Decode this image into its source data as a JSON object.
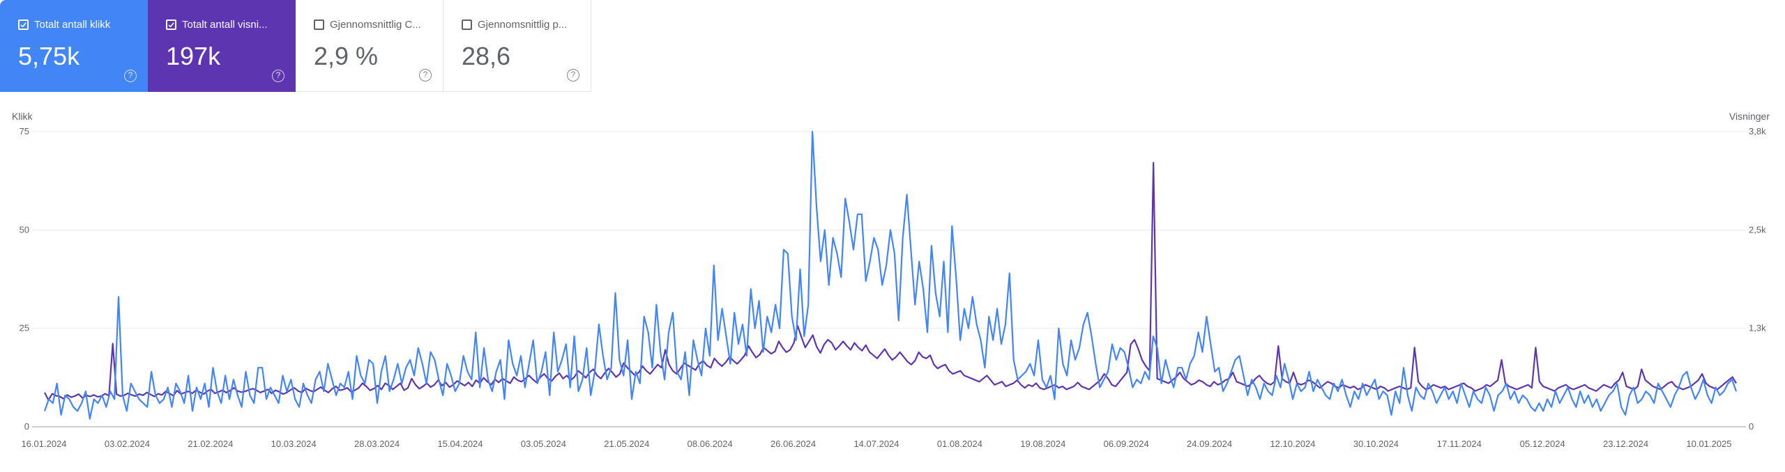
{
  "cards": [
    {
      "label": "Totalt antall klikk",
      "value": "5,75k",
      "checked": true,
      "color": "#4285f4"
    },
    {
      "label": "Totalt antall visni...",
      "value": "197k",
      "checked": true,
      "color": "#5e35b1"
    },
    {
      "label": "Gjennomsnittlig C...",
      "value": "2,9 %",
      "checked": false,
      "color": "#ffffff"
    },
    {
      "label": "Gjennomsnittlig p...",
      "value": "28,6",
      "checked": false,
      "color": "#ffffff"
    }
  ],
  "help_glyph": "?",
  "chart_data": {
    "type": "line",
    "left_axis_title": "Klikk",
    "right_axis_title": "Visninger",
    "left_ticks": [
      "0",
      "25",
      "50",
      "75"
    ],
    "right_ticks": [
      "0",
      "1,3k",
      "2,5k",
      "3,8k"
    ],
    "y_left_range": [
      0,
      75
    ],
    "y_right_range": [
      0,
      3800
    ],
    "x_labels": [
      "16.01.2024",
      "03.02.2024",
      "21.02.2024",
      "10.03.2024",
      "28.03.2024",
      "15.04.2024",
      "03.05.2024",
      "21.05.2024",
      "08.06.2024",
      "26.06.2024",
      "14.07.2024",
      "01.08.2024",
      "19.08.2024",
      "06.09.2024",
      "24.09.2024",
      "12.10.2024",
      "30.10.2024",
      "17.11.2024",
      "05.12.2024",
      "23.12.2024",
      "10.01.2025"
    ],
    "series": [
      {
        "axis": "left",
        "color": "#4285f4",
        "values": [
          4,
          7,
          6,
          11,
          3,
          8,
          7,
          5,
          4,
          6,
          9,
          2,
          7,
          6,
          8,
          5,
          9,
          7,
          33,
          8,
          4,
          11,
          9,
          7,
          6,
          5,
          14,
          8,
          6,
          7,
          10,
          5,
          11,
          9,
          6,
          13,
          4,
          10,
          7,
          11,
          5,
          15,
          9,
          6,
          13,
          7,
          12,
          8,
          5,
          14,
          8,
          6,
          15,
          15,
          7,
          10,
          8,
          6,
          13,
          9,
          12,
          7,
          5,
          11,
          8,
          6,
          12,
          14,
          9,
          16,
          12,
          8,
          11,
          10,
          14,
          7,
          18,
          13,
          11,
          17,
          16,
          6,
          14,
          18,
          9,
          12,
          16,
          11,
          15,
          17,
          13,
          20,
          16,
          11,
          19,
          17,
          12,
          8,
          16,
          13,
          9,
          11,
          18,
          14,
          12,
          24,
          10,
          20,
          12,
          9,
          14,
          17,
          7,
          22,
          16,
          13,
          18,
          10,
          16,
          22,
          11,
          14,
          19,
          8,
          24,
          14,
          17,
          21,
          10,
          23,
          9,
          12,
          20,
          8,
          14,
          26,
          18,
          12,
          15,
          34,
          17,
          13,
          22,
          7,
          14,
          11,
          28,
          24,
          15,
          31,
          19,
          12,
          24,
          29,
          14,
          12,
          19,
          8,
          22,
          17,
          13,
          25,
          18,
          41,
          22,
          30,
          23,
          16,
          29,
          21,
          26,
          18,
          35,
          25,
          32,
          19,
          28,
          24,
          31,
          25,
          45,
          44,
          28,
          22,
          40,
          23,
          31,
          75,
          56,
          42,
          50,
          36,
          48,
          44,
          38,
          58,
          52,
          45,
          54,
          54,
          37,
          42,
          48,
          45,
          36,
          41,
          50,
          44,
          27,
          48,
          59,
          45,
          31,
          42,
          35,
          24,
          46,
          34,
          28,
          42,
          24,
          51,
          38,
          22,
          30,
          25,
          33,
          26,
          22,
          15,
          28,
          22,
          30,
          21,
          26,
          39,
          17,
          12,
          13,
          14,
          16,
          13,
          22,
          12,
          10,
          13,
          7,
          25,
          16,
          13,
          22,
          17,
          20,
          26,
          29,
          23,
          16,
          10,
          12,
          14,
          21,
          17,
          20,
          19,
          15,
          10,
          12,
          11,
          14,
          12,
          23,
          20,
          11,
          17,
          13,
          10,
          15,
          15,
          12,
          16,
          18,
          24,
          19,
          28,
          21,
          14,
          15,
          9,
          11,
          14,
          17,
          18,
          13,
          8,
          12,
          10,
          7,
          11,
          9,
          8,
          13,
          10,
          16,
          12,
          7,
          11,
          9,
          10,
          14,
          9,
          12,
          10,
          8,
          7,
          11,
          9,
          12,
          8,
          5,
          9,
          7,
          11,
          8,
          10,
          12,
          7,
          9,
          8,
          3,
          9,
          6,
          15,
          8,
          4,
          10,
          8,
          7,
          11,
          9,
          6,
          8,
          10,
          7,
          9,
          6,
          11,
          8,
          5,
          9,
          7,
          6,
          10,
          8,
          4,
          8,
          9,
          11,
          7,
          9,
          6,
          8,
          7,
          5,
          4,
          6,
          4,
          7,
          5,
          9,
          6,
          8,
          10,
          7,
          5,
          9,
          6,
          8,
          5,
          7,
          4,
          6,
          8,
          9,
          11,
          5,
          3,
          8,
          10,
          6,
          7,
          9,
          8,
          6,
          11,
          9,
          7,
          5,
          8,
          10,
          13,
          14,
          10,
          7,
          9,
          12,
          8,
          6,
          10,
          8,
          9,
          11,
          12,
          9
        ]
      },
      {
        "axis": "right",
        "color": "#5e35b1",
        "values": [
          440,
          345,
          425,
          400,
          390,
          360,
          410,
          380,
          395,
          420,
          370,
          405,
          390,
          410,
          385,
          395,
          425,
          400,
          1070,
          420,
          395,
          405,
          430,
          410,
          395,
          420,
          405,
          440,
          415,
          390,
          425,
          410,
          455,
          430,
          400,
          465,
          420,
          440,
          455,
          430,
          470,
          445,
          420,
          460,
          480,
          430,
          450,
          470,
          440,
          465,
          500,
          460,
          445,
          455,
          475,
          490,
          470,
          440,
          460,
          480,
          430,
          470,
          450,
          420,
          440,
          475,
          500,
          460,
          440,
          495,
          470,
          450,
          480,
          510,
          470,
          440,
          490,
          520,
          470,
          480,
          500,
          450,
          470,
          500,
          560,
          520,
          470,
          490,
          530,
          480,
          560,
          530,
          480,
          520,
          560,
          470,
          500,
          620,
          540,
          490,
          520,
          560,
          510,
          540,
          600,
          530,
          570,
          510,
          540,
          590,
          560,
          530,
          570,
          520,
          600,
          560,
          630,
          580,
          540,
          610,
          570,
          620,
          590,
          560,
          640,
          600,
          580,
          620,
          660,
          610,
          570,
          640,
          680,
          620,
          590,
          650,
          690,
          620,
          660,
          600,
          640,
          720,
          680,
          630,
          700,
          740,
          660,
          620,
          690,
          750,
          700,
          640,
          680,
          820,
          760,
          710,
          660,
          700,
          780,
          720,
          680,
          740,
          800,
          760,
          990,
          800,
          720,
          680,
          750,
          820,
          790,
          760,
          730,
          810,
          850,
          790,
          760,
          880,
          820,
          780,
          830,
          900,
          850,
          810,
          860,
          920,
          1040,
          960,
          890,
          930,
          1020,
          980,
          940,
          970,
          1100,
          1020,
          960,
          990,
          1080,
          1300,
          1150,
          1020,
          1100,
          1180,
          1030,
          950,
          1060,
          1120,
          1080,
          990,
          1040,
          1100,
          1040,
          990,
          1080,
          1020,
          980,
          1050,
          960,
          920,
          880,
          940,
          1000,
          920,
          860,
          900,
          960,
          900,
          840,
          800,
          850,
          960,
          900,
          880,
          920,
          800,
          750,
          780,
          800,
          720,
          680,
          700,
          720,
          660,
          640,
          620,
          600,
          580,
          620,
          660,
          600,
          540,
          560,
          580,
          520,
          540,
          560,
          600,
          540,
          500,
          540,
          520,
          560,
          500,
          480,
          500,
          520,
          540,
          500,
          520,
          480,
          500,
          520,
          570,
          520,
          500,
          480,
          520,
          560,
          600,
          680,
          620,
          540,
          520,
          580,
          640,
          700,
          1060,
          1120,
          1000,
          860,
          780,
          720,
          3400,
          620,
          600,
          580,
          560,
          600,
          640,
          700,
          620,
          580,
          540,
          560,
          600,
          580,
          540,
          520,
          580,
          540,
          560,
          600,
          620,
          700,
          580,
          560,
          540,
          520,
          560,
          620,
          660,
          600,
          560,
          540,
          580,
          1040,
          620,
          580,
          560,
          700,
          560,
          540,
          560,
          600,
          580,
          540,
          500,
          540,
          580,
          560,
          520,
          500,
          540,
          520,
          500,
          520,
          480,
          500,
          540,
          520,
          500,
          480,
          520,
          500,
          460,
          480,
          500,
          520,
          500,
          480,
          500,
          1020,
          580,
          520,
          480,
          500,
          540,
          520,
          500,
          520,
          480,
          500,
          520,
          540,
          560,
          520,
          500,
          460,
          480,
          500,
          540,
          520,
          560,
          600,
          860,
          560,
          520,
          500,
          480,
          500,
          520,
          540,
          500,
          1020,
          580,
          520,
          500,
          480,
          460,
          500,
          520,
          540,
          500,
          480,
          500,
          520,
          540,
          500,
          480,
          460,
          500,
          540,
          520,
          500,
          560,
          600,
          700,
          520,
          500,
          480,
          520,
          740,
          600,
          560,
          520,
          500,
          480,
          520,
          560,
          580,
          520,
          500,
          480,
          500,
          520,
          560,
          600,
          680,
          560,
          520,
          500,
          480,
          520,
          560,
          600,
          640,
          560
        ]
      }
    ],
    "grid": true
  }
}
